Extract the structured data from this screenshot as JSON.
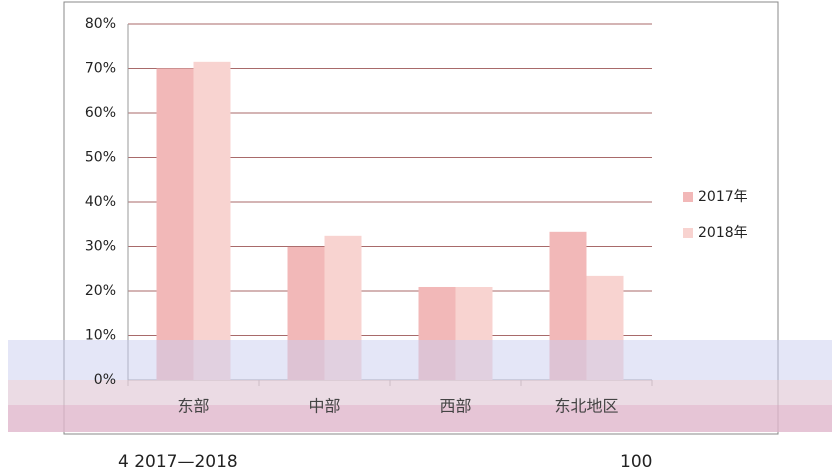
{
  "chart_data": {
    "type": "bar",
    "categories": [
      "东部",
      "中部",
      "西部",
      "东北地区"
    ],
    "series": [
      {
        "name": "2017年",
        "color": "#f2b8b8",
        "values": [
          70,
          29.9,
          20.9,
          33.3
        ]
      },
      {
        "name": "2018年",
        "color": "#f8d3d0",
        "values": [
          71.5,
          32.4,
          20.9,
          23.4
        ]
      }
    ],
    "ylim": [
      0,
      80
    ],
    "yticks": [
      {
        "value": 0,
        "label": "0%"
      },
      {
        "value": 10,
        "label": "10%"
      },
      {
        "value": 20,
        "label": "20%"
      },
      {
        "value": 30,
        "label": "30%"
      },
      {
        "value": 40,
        "label": "40%"
      },
      {
        "value": 50,
        "label": "50%"
      },
      {
        "value": 60,
        "label": "60%"
      },
      {
        "value": 70,
        "label": "70%"
      },
      {
        "value": 80,
        "label": "80%"
      }
    ],
    "grid": true,
    "legend": "right",
    "footer": {
      "left": "4   2017—2018",
      "right": "100"
    }
  }
}
